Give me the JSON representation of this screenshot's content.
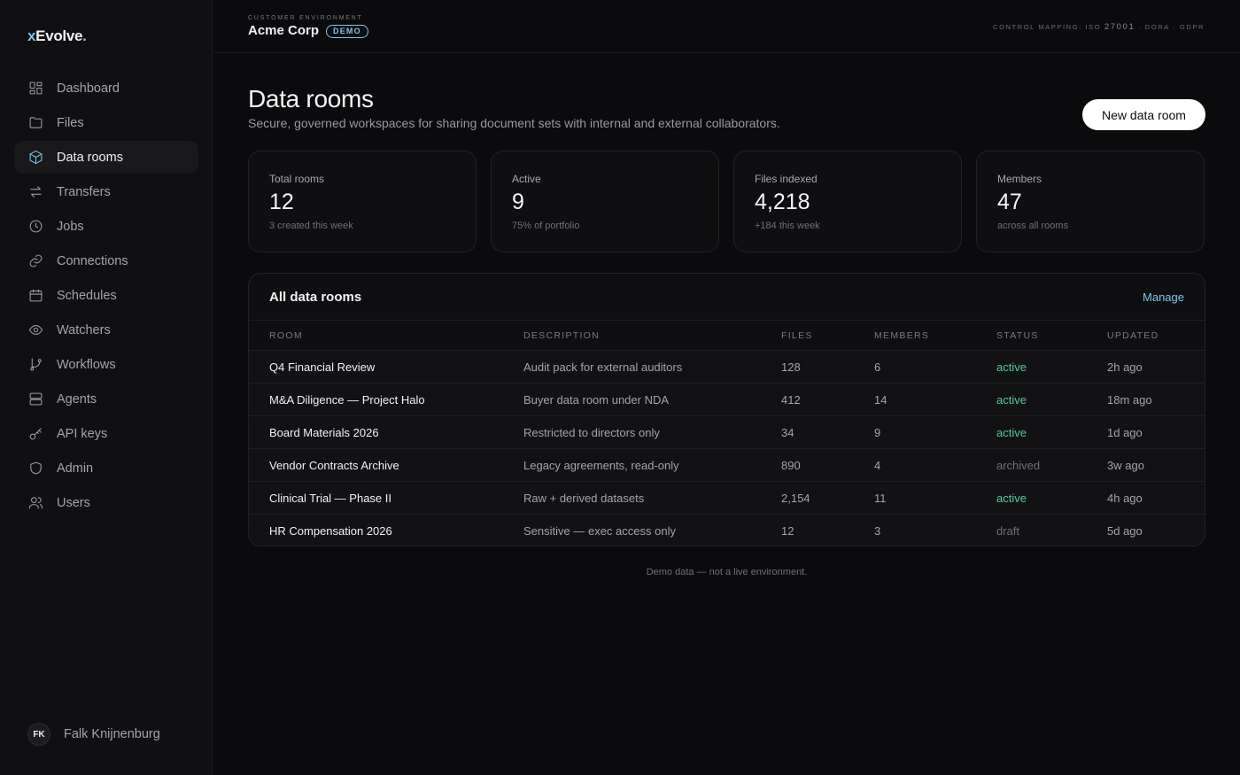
{
  "brand": {
    "prefix": "x",
    "name": "Evolve",
    "suffix": "."
  },
  "sidebar": {
    "items": [
      {
        "label": "Dashboard",
        "icon": "dashboard-icon"
      },
      {
        "label": "Files",
        "icon": "folder-icon"
      },
      {
        "label": "Data rooms",
        "icon": "cube-icon",
        "active": true
      },
      {
        "label": "Transfers",
        "icon": "transfer-arrows-icon"
      },
      {
        "label": "Jobs",
        "icon": "clock-icon"
      },
      {
        "label": "Connections",
        "icon": "link-icon"
      },
      {
        "label": "Schedules",
        "icon": "calendar-icon"
      },
      {
        "label": "Watchers",
        "icon": "eye-icon"
      },
      {
        "label": "Workflows",
        "icon": "git-branch-icon"
      },
      {
        "label": "Agents",
        "icon": "server-icon"
      },
      {
        "label": "API keys",
        "icon": "key-icon"
      },
      {
        "label": "Admin",
        "icon": "shield-icon"
      },
      {
        "label": "Users",
        "icon": "users-icon"
      }
    ],
    "user": {
      "initials": "FK",
      "name": "Falk Knijnenburg"
    }
  },
  "topbar": {
    "env_label": "CUSTOMER ENVIRONMENT",
    "env_name": "Acme Corp",
    "badge": "DEMO",
    "control_prefix": "CONTROL MAPPING: ISO",
    "control_iso": "27001",
    "control_suffix": "· DORA · GDPR"
  },
  "header": {
    "title": "Data rooms",
    "subtitle": "Secure, governed workspaces for sharing document sets with internal and external collaborators.",
    "new_button": "New data room"
  },
  "stats": [
    {
      "label": "Total rooms",
      "value": "12",
      "sub": "3 created this week"
    },
    {
      "label": "Active",
      "value": "9",
      "sub": "75% of portfolio"
    },
    {
      "label": "Files indexed",
      "value": "4,218",
      "sub": "+184 this week"
    },
    {
      "label": "Members",
      "value": "47",
      "sub": "across all rooms"
    }
  ],
  "table": {
    "title": "All data rooms",
    "manage": "Manage",
    "columns": [
      "ROOM",
      "DESCRIPTION",
      "FILES",
      "MEMBERS",
      "STATUS",
      "UPDATED"
    ],
    "rows": [
      {
        "room": "Q4 Financial Review",
        "description": "Audit pack for external auditors",
        "files": "128",
        "members": "6",
        "status": "active",
        "updated": "2h ago"
      },
      {
        "room": "M&A Diligence — Project Halo",
        "description": "Buyer data room under NDA",
        "files": "412",
        "members": "14",
        "status": "active",
        "updated": "18m ago"
      },
      {
        "room": "Board Materials 2026",
        "description": "Restricted to directors only",
        "files": "34",
        "members": "9",
        "status": "active",
        "updated": "1d ago"
      },
      {
        "room": "Vendor Contracts Archive",
        "description": "Legacy agreements, read-only",
        "files": "890",
        "members": "4",
        "status": "archived",
        "updated": "3w ago"
      },
      {
        "room": "Clinical Trial — Phase II",
        "description": "Raw + derived datasets",
        "files": "2,154",
        "members": "11",
        "status": "active",
        "updated": "4h ago"
      },
      {
        "room": "HR Compensation 2026",
        "description": "Sensitive — exec access only",
        "files": "12",
        "members": "3",
        "status": "draft",
        "updated": "5d ago"
      }
    ]
  },
  "footer_note": "Demo data — not a live environment.",
  "colors": {
    "accent": "#7cc6ee",
    "active_status": "#58c79a",
    "background": "#0b0b0d"
  }
}
